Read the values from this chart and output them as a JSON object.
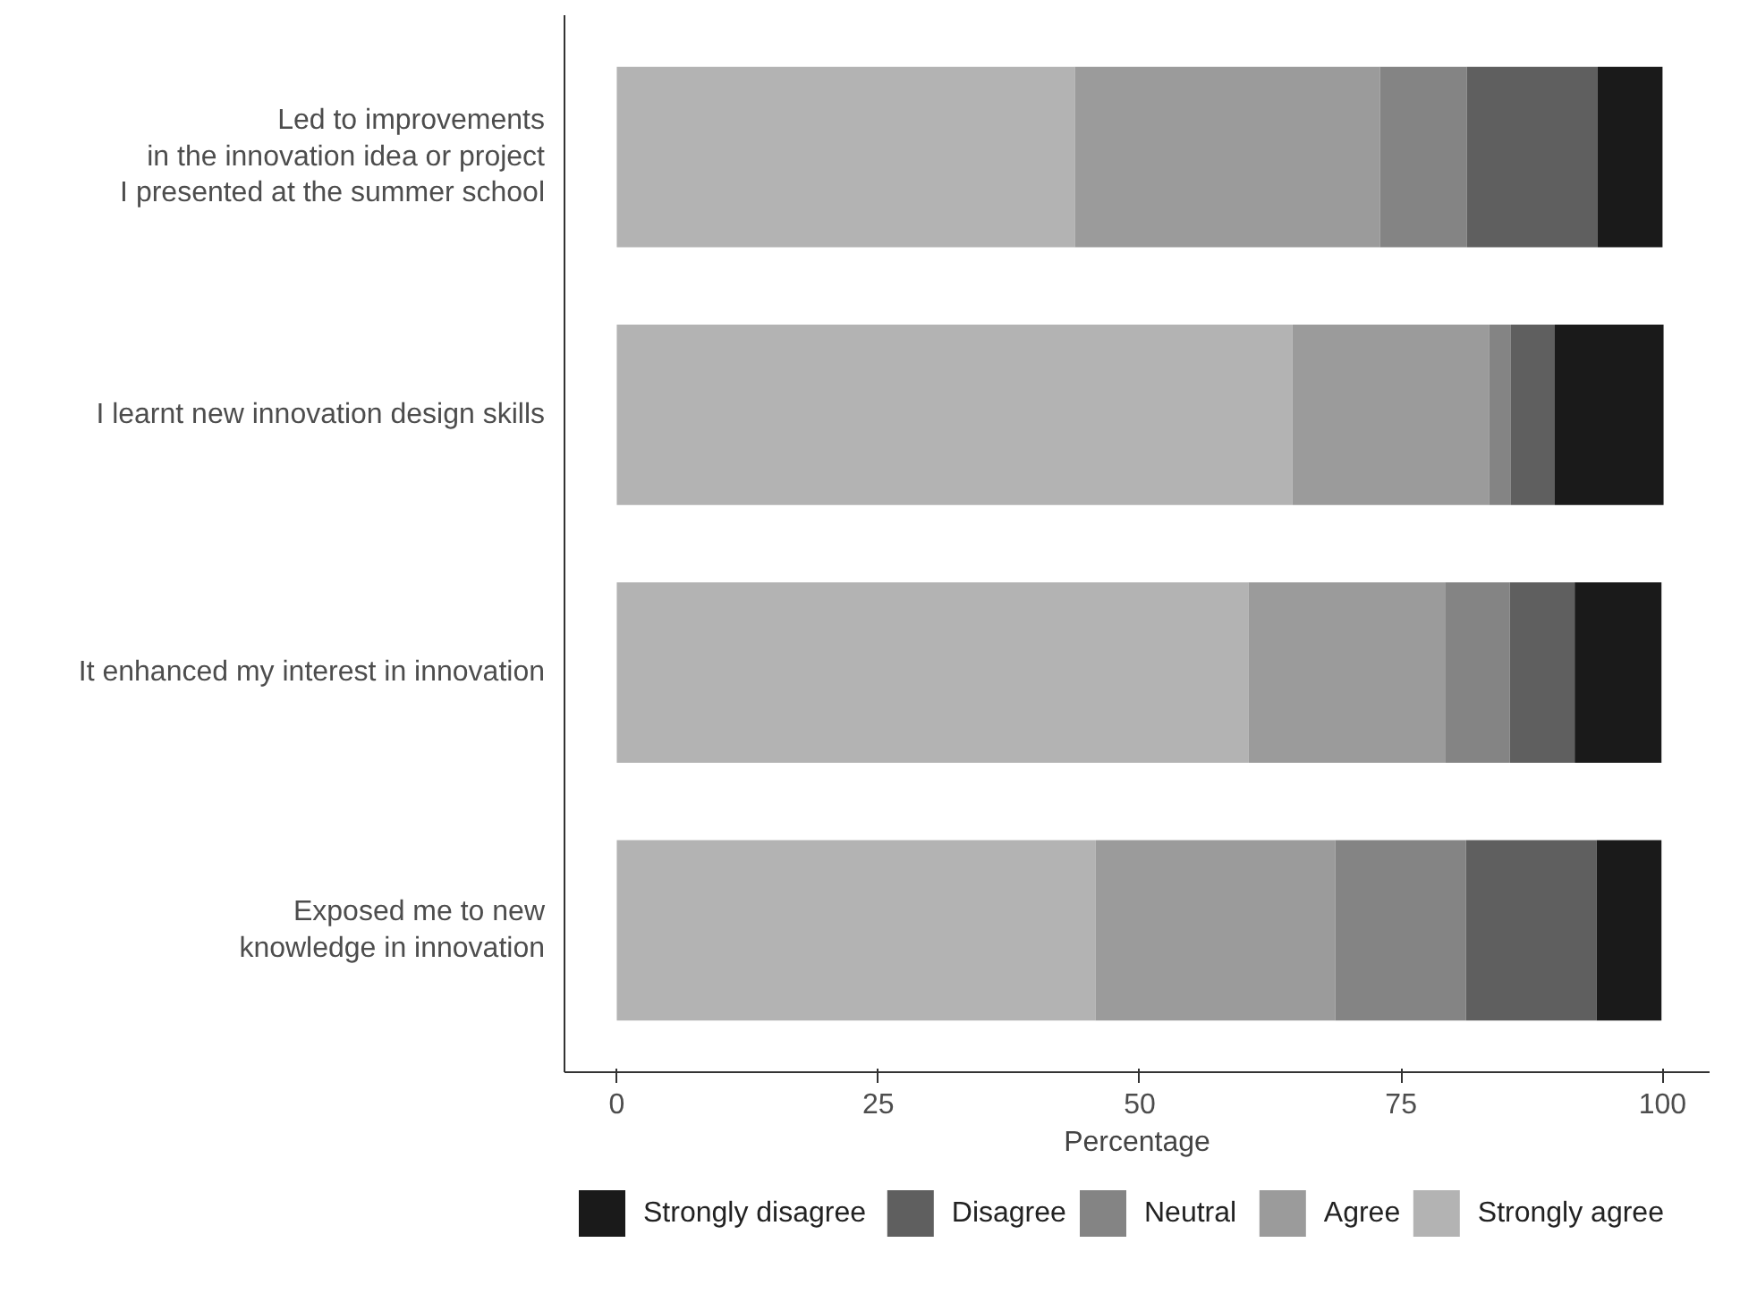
{
  "chart_data": {
    "type": "bar",
    "orientation": "horizontal",
    "stacked": true,
    "xlabel": "Percentage",
    "categories": [
      "Led to improvements\nin the innovation idea or project\nI presented at the summer school",
      "I learnt new innovation design skills",
      "It enhanced my interest in innovation",
      "Exposed me to new\nknowledge in innovation"
    ],
    "series": [
      {
        "name": "Strongly agree",
        "color": "#b3b3b3",
        "values": [
          43.8,
          64.6,
          60.4,
          45.8
        ]
      },
      {
        "name": "Agree",
        "color": "#9b9b9b",
        "values": [
          29.2,
          18.8,
          18.8,
          22.9
        ]
      },
      {
        "name": "Neutral",
        "color": "#848484",
        "values": [
          8.3,
          2.1,
          6.2,
          12.5
        ]
      },
      {
        "name": "Disagree",
        "color": "#5f5f5f",
        "values": [
          12.5,
          4.2,
          6.2,
          12.5
        ]
      },
      {
        "name": "Strongly disagree",
        "color": "#1a1a1a",
        "values": [
          6.2,
          10.4,
          8.3,
          6.2
        ]
      }
    ],
    "xlim": [
      -5,
      104.5
    ],
    "xticks": [
      0,
      25,
      50,
      75,
      100
    ],
    "grid": false,
    "legend": "bottom"
  }
}
